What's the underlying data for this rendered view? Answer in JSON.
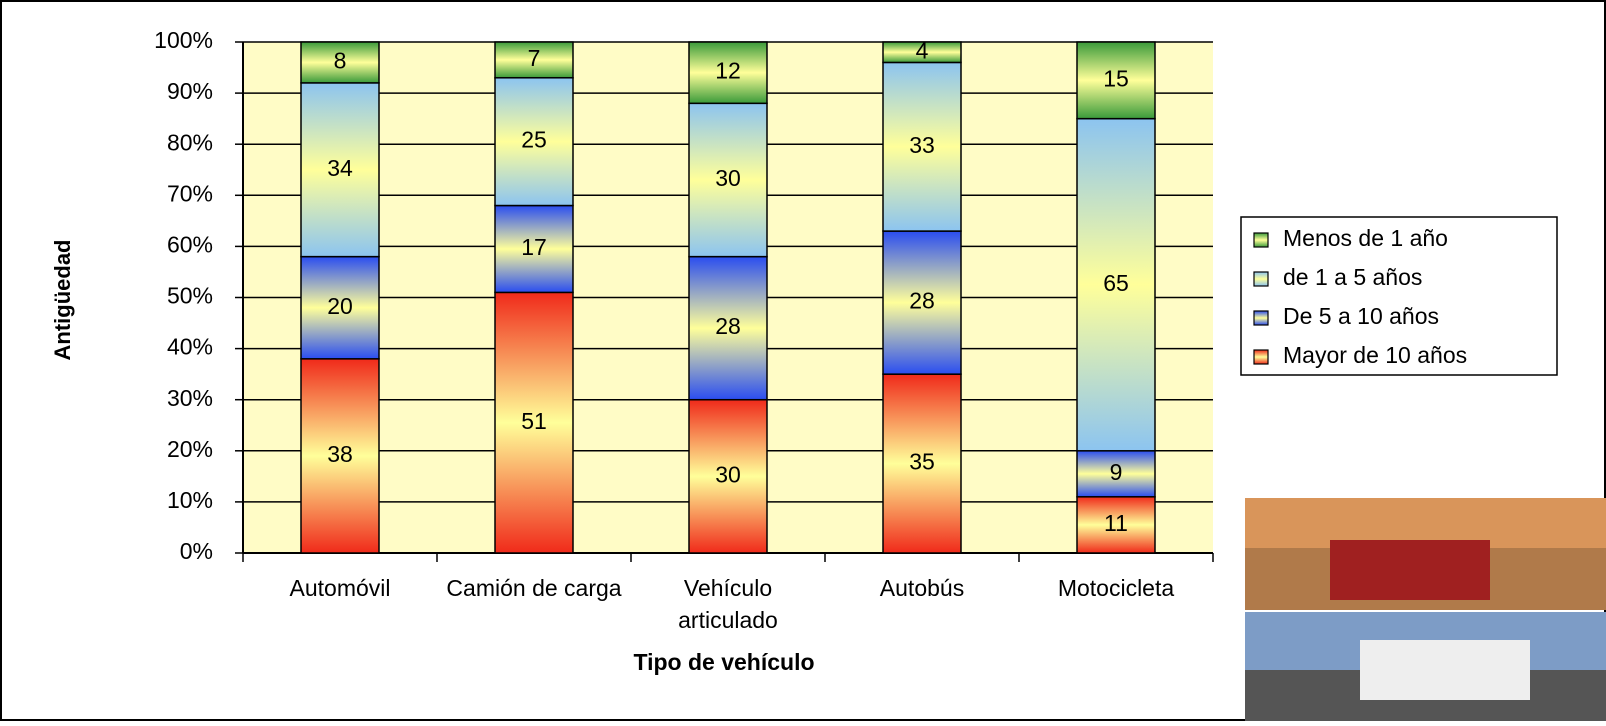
{
  "chart_data": {
    "type": "stacked_bar_100",
    "x_label": "Tipo de vehículo",
    "y_label": "Antigüedad",
    "categories": [
      "Automóvil",
      "Camión de carga",
      "Vehículo articulado",
      "Autobús",
      "Motocicleta"
    ],
    "series": [
      {
        "name": "Mayor de 10 años",
        "color": "#f02a1a",
        "values": [
          38,
          51,
          30,
          35,
          11
        ]
      },
      {
        "name": "De 5 a 10 años",
        "color": "#2a4df0",
        "values": [
          20,
          17,
          28,
          28,
          9
        ]
      },
      {
        "name": "de 1 a 5 años",
        "color": "#8cc4f0",
        "values": [
          34,
          25,
          30,
          33,
          65
        ]
      },
      {
        "name": "Menos de 1 año",
        "color": "#3a9a3a",
        "values": [
          8,
          7,
          12,
          4,
          15
        ]
      }
    ],
    "ylim": [
      0,
      100
    ],
    "yticks": [
      {
        "value": 0,
        "label": "0%"
      },
      {
        "value": 10,
        "label": "10%"
      },
      {
        "value": 20,
        "label": "20%"
      },
      {
        "value": 30,
        "label": "30%"
      },
      {
        "value": 40,
        "label": "40%"
      },
      {
        "value": 50,
        "label": "50%"
      },
      {
        "value": 60,
        "label": "60%"
      },
      {
        "value": 70,
        "label": "70%"
      },
      {
        "value": 80,
        "label": "80%"
      },
      {
        "value": 90,
        "label": "90%"
      },
      {
        "value": 100,
        "label": "100%"
      }
    ],
    "grid": true,
    "legend": "right"
  }
}
